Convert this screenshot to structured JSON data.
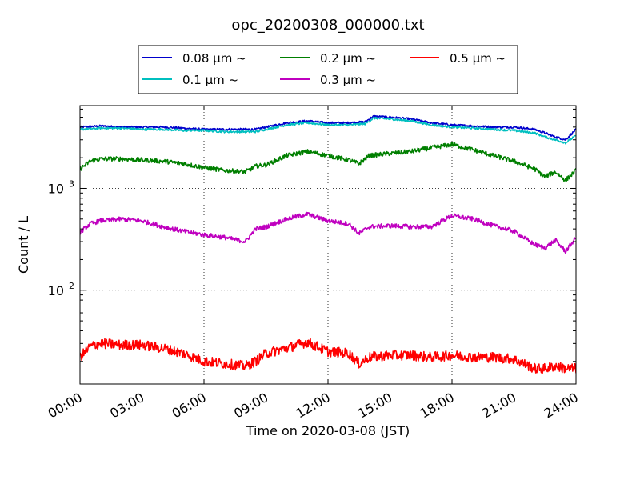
{
  "chart_data": {
    "type": "line",
    "title": "opc_20200308_000000.txt",
    "xlabel": "Time on 2020-03-08 (JST)",
    "ylabel": "Count / L",
    "x_unit": "hours",
    "x_tick_labels": [
      "00:00",
      "03:00",
      "06:00",
      "09:00",
      "12:00",
      "15:00",
      "18:00",
      "21:00",
      "24:00"
    ],
    "xlim": [
      0,
      24
    ],
    "yscale": "log",
    "ylim": [
      12,
      6500
    ],
    "y_tick_labels": [
      {
        "value": 100,
        "base": "10",
        "exp": "2"
      },
      {
        "value": 1000,
        "base": "10",
        "exp": "3"
      }
    ],
    "grid": true,
    "legend_position": "top-center",
    "series": [
      {
        "name": "0.08 μm ~",
        "color": "#0000cc",
        "x": [
          0,
          1,
          2,
          3,
          4,
          5,
          6,
          7,
          8,
          8.5,
          9,
          10,
          11,
          12,
          13,
          13.8,
          14.2,
          15,
          16,
          17,
          18,
          19,
          20,
          21,
          22,
          22.5,
          23,
          23.5,
          24
        ],
        "y": [
          4000,
          4100,
          4000,
          4000,
          4000,
          3900,
          3800,
          3800,
          3800,
          3800,
          4000,
          4400,
          4600,
          4400,
          4400,
          4500,
          5100,
          5000,
          4800,
          4400,
          4200,
          4100,
          4000,
          4000,
          3800,
          3500,
          3200,
          3000,
          3800
        ]
      },
      {
        "name": "0.1 μm ~",
        "color": "#00bfbf",
        "x": [
          0,
          1,
          2,
          3,
          4,
          5,
          6,
          7,
          8,
          8.5,
          9,
          10,
          11,
          12,
          13,
          13.8,
          14.2,
          15,
          16,
          17,
          18,
          19,
          20,
          21,
          22,
          22.5,
          23,
          23.5,
          24
        ],
        "y": [
          3800,
          3900,
          3900,
          3800,
          3800,
          3700,
          3700,
          3600,
          3600,
          3600,
          3800,
          4200,
          4400,
          4200,
          4200,
          4300,
          4900,
          4800,
          4600,
          4200,
          4000,
          3900,
          3800,
          3700,
          3500,
          3200,
          3000,
          2800,
          3300
        ]
      },
      {
        "name": "0.2 μm ~",
        "color": "#007f00",
        "x": [
          0,
          0.5,
          1,
          2,
          3,
          4,
          5,
          6,
          7,
          8,
          8.5,
          9,
          10,
          11,
          12,
          13,
          13.5,
          14,
          15,
          16,
          17,
          18,
          19,
          20,
          21,
          22,
          22.5,
          23,
          23.5,
          24
        ],
        "y": [
          1550,
          1850,
          1950,
          1950,
          1900,
          1850,
          1750,
          1600,
          1500,
          1450,
          1650,
          1700,
          2100,
          2300,
          2100,
          1900,
          1750,
          2100,
          2200,
          2300,
          2500,
          2700,
          2400,
          2100,
          1850,
          1550,
          1300,
          1450,
          1200,
          1500
        ]
      },
      {
        "name": "0.3 μm ~",
        "color": "#bf00bf",
        "x": [
          0,
          0.5,
          1,
          2,
          3,
          4,
          5,
          6,
          7,
          8,
          8.5,
          9,
          10,
          11,
          12,
          13,
          13.5,
          14,
          15,
          16,
          17,
          18,
          19,
          20,
          21,
          22,
          22.5,
          23,
          23.5,
          24
        ],
        "y": [
          370,
          450,
          480,
          500,
          480,
          420,
          380,
          350,
          330,
          300,
          400,
          420,
          500,
          560,
          480,
          450,
          360,
          420,
          430,
          420,
          420,
          540,
          500,
          430,
          380,
          280,
          260,
          310,
          240,
          330
        ]
      },
      {
        "name": "0.5 μm ~",
        "color": "#ff0000",
        "x": [
          0,
          0.5,
          1,
          2,
          3,
          4,
          5,
          6,
          7,
          8,
          8.5,
          9,
          10,
          11,
          12,
          13,
          13.5,
          14,
          15,
          16,
          17,
          18,
          19,
          20,
          21,
          22,
          22.5,
          23,
          23.5,
          24
        ],
        "y": [
          22,
          28,
          30,
          29,
          29,
          27,
          24,
          20,
          19,
          18,
          20,
          24,
          27,
          31,
          25,
          24,
          19,
          22,
          23,
          23,
          22,
          23,
          22,
          22,
          21,
          17,
          17,
          18,
          17,
          17
        ]
      }
    ]
  }
}
